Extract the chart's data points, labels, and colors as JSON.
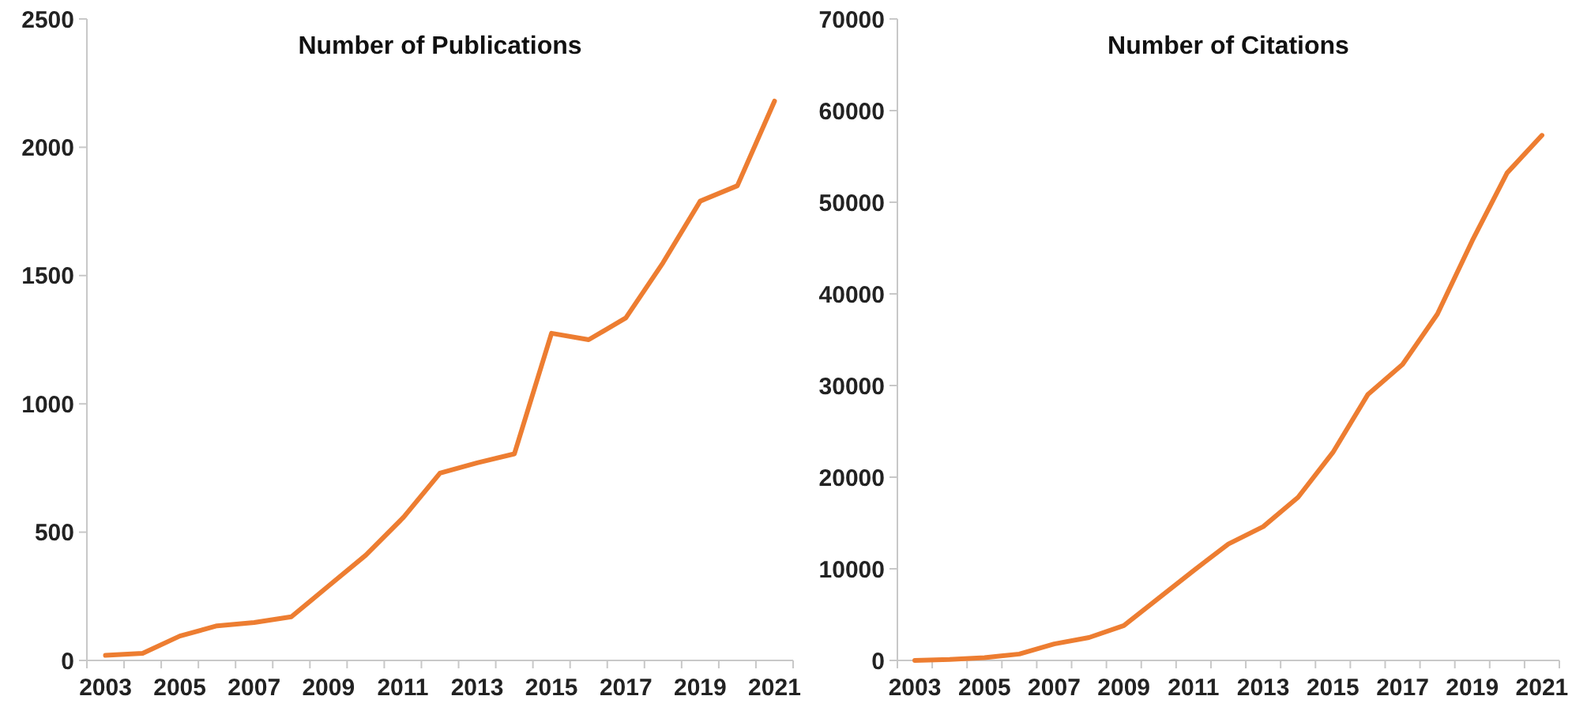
{
  "chart_data": [
    {
      "type": "line",
      "title": "Number of Publications",
      "categories": [
        "2003",
        null,
        "2005",
        null,
        "2007",
        null,
        "2009",
        null,
        "2011",
        null,
        "2013",
        null,
        "2015",
        null,
        "2017",
        null,
        "2019",
        null,
        "2021"
      ],
      "series": [
        {
          "color": "#ed7d31",
          "values": [
            20,
            28,
            95,
            135,
            148,
            170,
            290,
            410,
            555,
            730,
            770,
            805,
            1275,
            1250,
            1335,
            1550,
            1790,
            1850,
            2180
          ]
        }
      ],
      "ylim": [
        0,
        2500
      ],
      "yticks": [
        0,
        500,
        1000,
        1500,
        2000,
        2500
      ]
    },
    {
      "type": "line",
      "title": "Number of Citations",
      "categories": [
        "2003",
        null,
        "2005",
        null,
        "2007",
        null,
        "2009",
        null,
        "2011",
        null,
        "2013",
        null,
        "2015",
        null,
        "2017",
        null,
        "2019",
        null,
        "2021"
      ],
      "series": [
        {
          "color": "#ed7d31",
          "values": [
            0,
            100,
            300,
            700,
            1800,
            2500,
            3800,
            6800,
            9800,
            12700,
            14600,
            17800,
            22700,
            29000,
            32300,
            37800,
            45800,
            53200,
            57300
          ]
        }
      ],
      "ylim": [
        0,
        70000
      ],
      "yticks": [
        0,
        10000,
        20000,
        30000,
        40000,
        50000,
        60000,
        70000
      ]
    }
  ]
}
